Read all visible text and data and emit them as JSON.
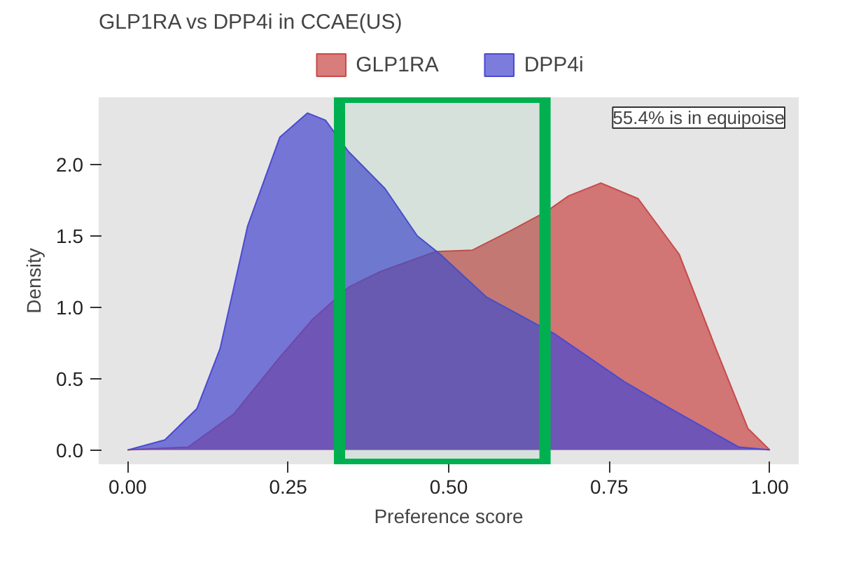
{
  "chart_data": {
    "type": "area",
    "title": "GLP1RA vs DPP4i in CCAE(US)",
    "xlabel": "Preference score",
    "ylabel": "Density",
    "series": [
      {
        "name": "GLP1RA",
        "color": "#c94a4a",
        "x": [
          0,
          0.094,
          0.165,
          0.237,
          0.287,
          0.344,
          0.394,
          0.48,
          0.537,
          0.594,
          0.652,
          0.687,
          0.737,
          0.795,
          0.859,
          0.916,
          0.966,
          1.0
        ],
        "values": [
          0,
          0.02,
          0.25,
          0.65,
          0.91,
          1.14,
          1.25,
          1.39,
          1.4,
          1.53,
          1.67,
          1.78,
          1.87,
          1.76,
          1.37,
          0.71,
          0.15,
          0
        ]
      },
      {
        "name": "DPP4i",
        "color": "#4a4ad0",
        "x": [
          0,
          0.058,
          0.108,
          0.144,
          0.187,
          0.237,
          0.28,
          0.308,
          0.344,
          0.401,
          0.451,
          0.487,
          0.559,
          0.666,
          0.773,
          0.845,
          0.952,
          1.0
        ],
        "values": [
          0,
          0.07,
          0.29,
          0.71,
          1.57,
          2.19,
          2.36,
          2.31,
          2.09,
          1.83,
          1.5,
          1.37,
          1.07,
          0.81,
          0.48,
          0.29,
          0.02,
          0
        ]
      }
    ],
    "xlim": [
      -0.045,
      1.045
    ],
    "ylim": [
      -0.1,
      2.47
    ],
    "xticks": [
      {
        "value": 0,
        "label": "0.00"
      },
      {
        "value": 0.25,
        "label": "0.25"
      },
      {
        "value": 0.5,
        "label": "0.50"
      },
      {
        "value": 0.75,
        "label": "0.75"
      },
      {
        "value": 1,
        "label": "1.00"
      }
    ],
    "yticks": [
      {
        "value": 0,
        "label": "0.0"
      },
      {
        "value": 0.5,
        "label": "0.5"
      },
      {
        "value": 1,
        "label": "1.0"
      },
      {
        "value": 1.5,
        "label": "1.5"
      },
      {
        "value": 2,
        "label": "2.0"
      }
    ],
    "bands": [
      {
        "axis": "x",
        "from": 0.33,
        "to": 0.65,
        "color": "#00b050"
      }
    ],
    "annotations": [
      "55.4% is in equipoise"
    ],
    "legend": "top",
    "grid": false
  }
}
